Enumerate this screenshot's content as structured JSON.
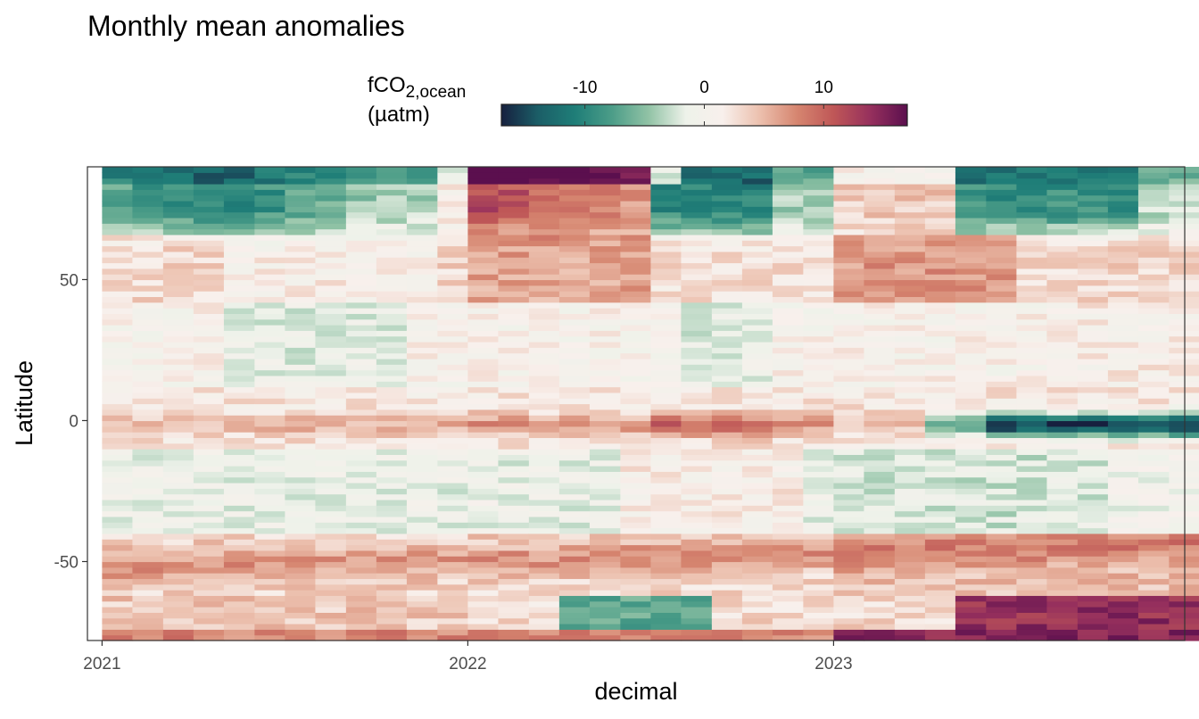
{
  "chart_data": {
    "type": "heatmap",
    "title": "Monthly mean anomalies",
    "xlabel": "decimal",
    "ylabel": "Latitude",
    "x_ticks": [
      2021,
      2022,
      2023
    ],
    "x_tick_labels": [
      "2021",
      "2022",
      "2023"
    ],
    "y_ticks": [
      50,
      0,
      -50
    ],
    "y_tick_labels": [
      "50",
      "0",
      "-50"
    ],
    "xlim": [
      2020.96,
      2023.96
    ],
    "ylim": [
      -78,
      90
    ],
    "months": [
      "2021-01",
      "2021-02",
      "2021-03",
      "2021-04",
      "2021-05",
      "2021-06",
      "2021-07",
      "2021-08",
      "2021-09",
      "2021-10",
      "2021-11",
      "2021-12",
      "2022-01",
      "2022-02",
      "2022-03",
      "2022-04",
      "2022-05",
      "2022-06",
      "2022-07",
      "2022-08",
      "2022-09",
      "2022-10",
      "2022-11",
      "2022-12",
      "2023-01",
      "2023-02",
      "2023-03",
      "2023-04",
      "2023-05",
      "2023-06",
      "2023-07",
      "2023-08",
      "2023-09",
      "2023-10",
      "2023-11",
      "2023-12"
    ],
    "month_starts": [
      2021.0,
      2021.083,
      2021.167,
      2021.25,
      2021.333,
      2021.417,
      2021.5,
      2021.583,
      2021.667,
      2021.75,
      2021.833,
      2021.917,
      2022.0,
      2022.083,
      2022.167,
      2022.25,
      2022.333,
      2022.417,
      2022.5,
      2022.583,
      2022.667,
      2022.75,
      2022.833,
      2022.917,
      2023.0,
      2023.083,
      2023.167,
      2023.25,
      2023.333,
      2023.417,
      2023.5,
      2023.583,
      2023.667,
      2023.75,
      2023.833,
      2023.917
    ],
    "lat_bin_width": 2,
    "lat_bins_from": -77,
    "lat_bins_to": 89,
    "anomaly_summary": "Anomaly field (µatm) by month and latitude: Arctic negative in 2021 and late 2022/2023, strongly positive early 2022; equatorial band positive through 2022, strongly negative from mid-2023; Southern Ocean 45–60°S positive, strongly positive near 65°S in late 2023",
    "colorbar": {
      "title_main": "fCO",
      "title_sub": "2,ocean",
      "title_unit": "(µatm)",
      "limits": [
        -17,
        17
      ],
      "ticks": [
        -10,
        0,
        10
      ],
      "tick_labels": [
        "-10",
        "0",
        "10"
      ],
      "colors": [
        "#17203f",
        "#1b5e67",
        "#1f7e78",
        "#4c9d88",
        "#92c3a6",
        "#eef2ea",
        "#f8f0ec",
        "#ecc0ae",
        "#d68670",
        "#bf5757",
        "#96305d",
        "#5b0f4e"
      ]
    },
    "grid": false,
    "legend_position": "top",
    "background": "#ffffff"
  }
}
